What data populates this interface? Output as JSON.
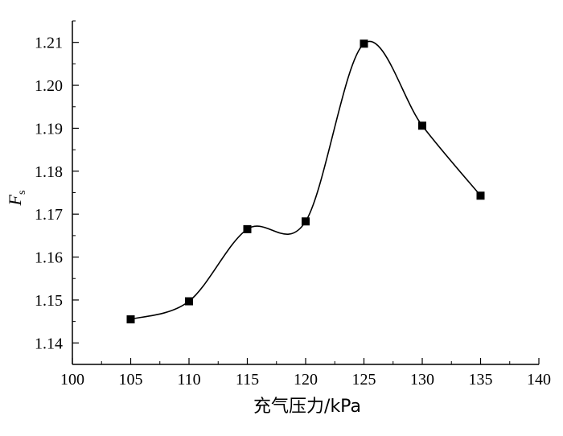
{
  "chart_data": {
    "type": "line",
    "title": "",
    "xlabel": "充气压力/kPa",
    "ylabel": "F",
    "ylabel_subscript": "s",
    "xlim": [
      100,
      140
    ],
    "ylim": [
      1.135,
      1.215
    ],
    "xticks": [
      "100",
      "105",
      "110",
      "115",
      "120",
      "125",
      "130",
      "135",
      "140"
    ],
    "yticks": [
      "1.14",
      "1.15",
      "1.16",
      "1.17",
      "1.18",
      "1.19",
      "1.20",
      "1.21"
    ],
    "grid": false,
    "legend": "none",
    "marker": "square",
    "line_style": "smooth",
    "color": "#000000",
    "x": [
      105,
      110,
      115,
      120,
      125,
      130,
      135
    ],
    "y": [
      1.1455,
      1.1497,
      1.1665,
      1.1683,
      1.2097,
      1.1906,
      1.1743
    ]
  }
}
